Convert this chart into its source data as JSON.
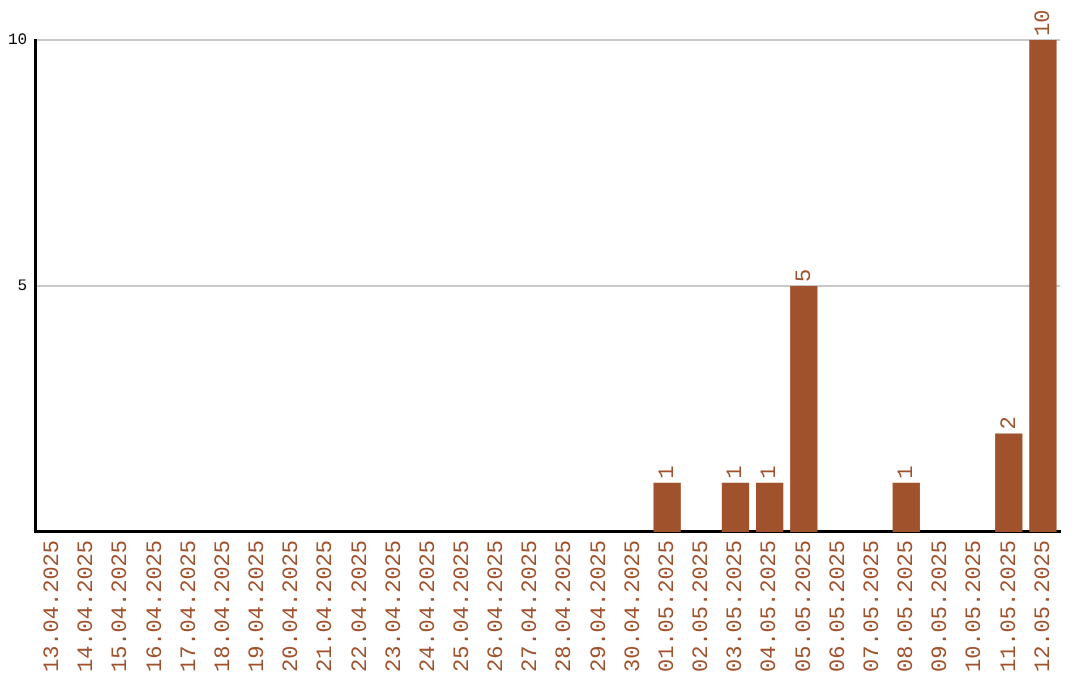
{
  "chart_data": {
    "type": "bar",
    "categories": [
      "13.04.2025",
      "14.04.2025",
      "15.04.2025",
      "16.04.2025",
      "17.04.2025",
      "18.04.2025",
      "19.04.2025",
      "20.04.2025",
      "21.04.2025",
      "22.04.2025",
      "23.04.2025",
      "24.04.2025",
      "25.04.2025",
      "26.04.2025",
      "27.04.2025",
      "28.04.2025",
      "29.04.2025",
      "30.04.2025",
      "01.05.2025",
      "02.05.2025",
      "03.05.2025",
      "04.05.2025",
      "05.05.2025",
      "06.05.2025",
      "07.05.2025",
      "08.05.2025",
      "09.05.2025",
      "10.05.2025",
      "11.05.2025",
      "12.05.2025"
    ],
    "values": [
      0,
      0,
      0,
      0,
      0,
      0,
      0,
      0,
      0,
      0,
      0,
      0,
      0,
      0,
      0,
      0,
      0,
      0,
      1,
      0,
      1,
      1,
      5,
      0,
      0,
      1,
      0,
      0,
      2,
      10
    ],
    "value_labels": [
      null,
      null,
      null,
      null,
      null,
      null,
      null,
      null,
      null,
      null,
      null,
      null,
      null,
      null,
      null,
      null,
      null,
      null,
      "1",
      null,
      "1",
      "1",
      "5",
      null,
      null,
      "1",
      null,
      null,
      "2",
      "10"
    ],
    "color": "#a0522d",
    "ylim": [
      0,
      10
    ],
    "yticks": [
      5,
      10
    ],
    "grid": "y",
    "legend": false
  }
}
